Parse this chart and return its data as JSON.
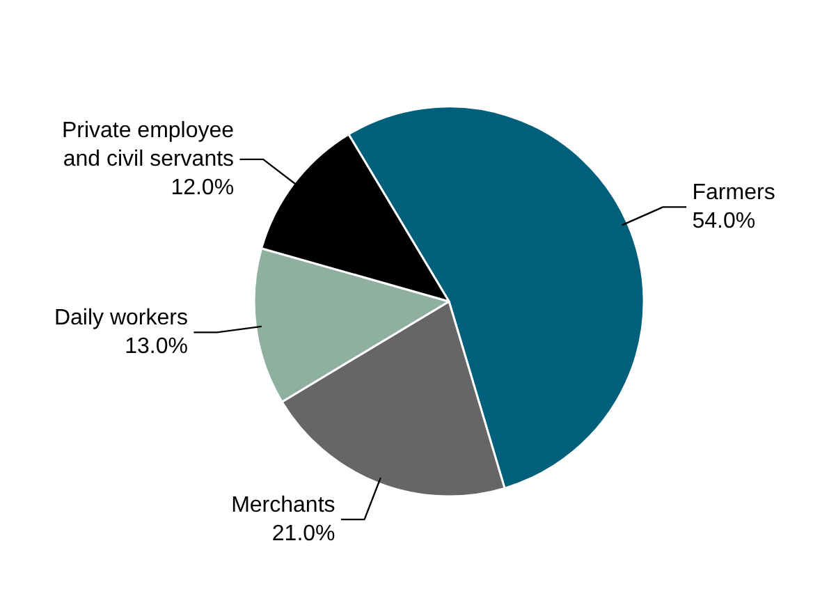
{
  "chart_data": {
    "type": "pie",
    "categories": [
      "Farmers",
      "Merchants",
      "Daily workers",
      "Private employee and civil servants"
    ],
    "values": [
      54.0,
      21.0,
      13.0,
      12.0
    ],
    "value_labels": [
      "54.0%",
      "21.0%",
      "13.0%",
      "12.0%"
    ],
    "colors": [
      "#005f7a",
      "#666666",
      "#8fb0a0",
      "#000000"
    ]
  }
}
